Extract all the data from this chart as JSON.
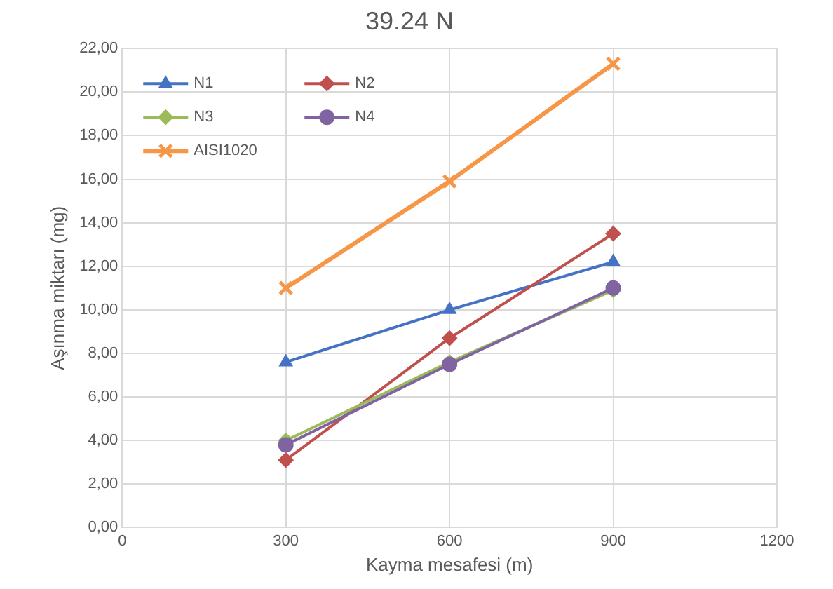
{
  "chart_data": {
    "type": "line",
    "title": "39.24 N",
    "xlabel": "Kayma mesafesi (m)",
    "ylabel": "Aşınma miktarı (mg)",
    "x": [
      300,
      600,
      900
    ],
    "series": [
      {
        "name": "N1",
        "color": "#4472c4",
        "marker": "triangle",
        "values": [
          7.6,
          10.0,
          12.2
        ]
      },
      {
        "name": "N2",
        "color": "#c0504d",
        "marker": "diamond",
        "values": [
          3.1,
          8.7,
          13.5
        ]
      },
      {
        "name": "N3",
        "color": "#9bbb59",
        "marker": "diamond",
        "values": [
          4.0,
          7.6,
          10.9
        ]
      },
      {
        "name": "N4",
        "color": "#8064a2",
        "marker": "circle",
        "values": [
          3.8,
          7.5,
          11.0
        ]
      },
      {
        "name": "AISI1020",
        "color": "#f79646",
        "marker": "cross",
        "values": [
          11.0,
          15.9,
          21.3
        ]
      }
    ],
    "xlim": [
      0,
      1200
    ],
    "xticks": [
      0,
      300,
      600,
      900,
      1200
    ],
    "ylim": [
      0,
      22
    ],
    "yticks": [
      {
        "value": 0,
        "label": "0,00"
      },
      {
        "value": 2,
        "label": "2,00"
      },
      {
        "value": 4,
        "label": "4,00"
      },
      {
        "value": 6,
        "label": "6,00"
      },
      {
        "value": 8,
        "label": "8,00"
      },
      {
        "value": 10,
        "label": "10,00"
      },
      {
        "value": 12,
        "label": "12,00"
      },
      {
        "value": 14,
        "label": "14,00"
      },
      {
        "value": 16,
        "label": "16,00"
      },
      {
        "value": 18,
        "label": "18,00"
      },
      {
        "value": 20,
        "label": "20,00"
      },
      {
        "value": 22,
        "label": "22,00"
      }
    ],
    "grid": true,
    "legend": "top left",
    "line_style": "solid"
  }
}
